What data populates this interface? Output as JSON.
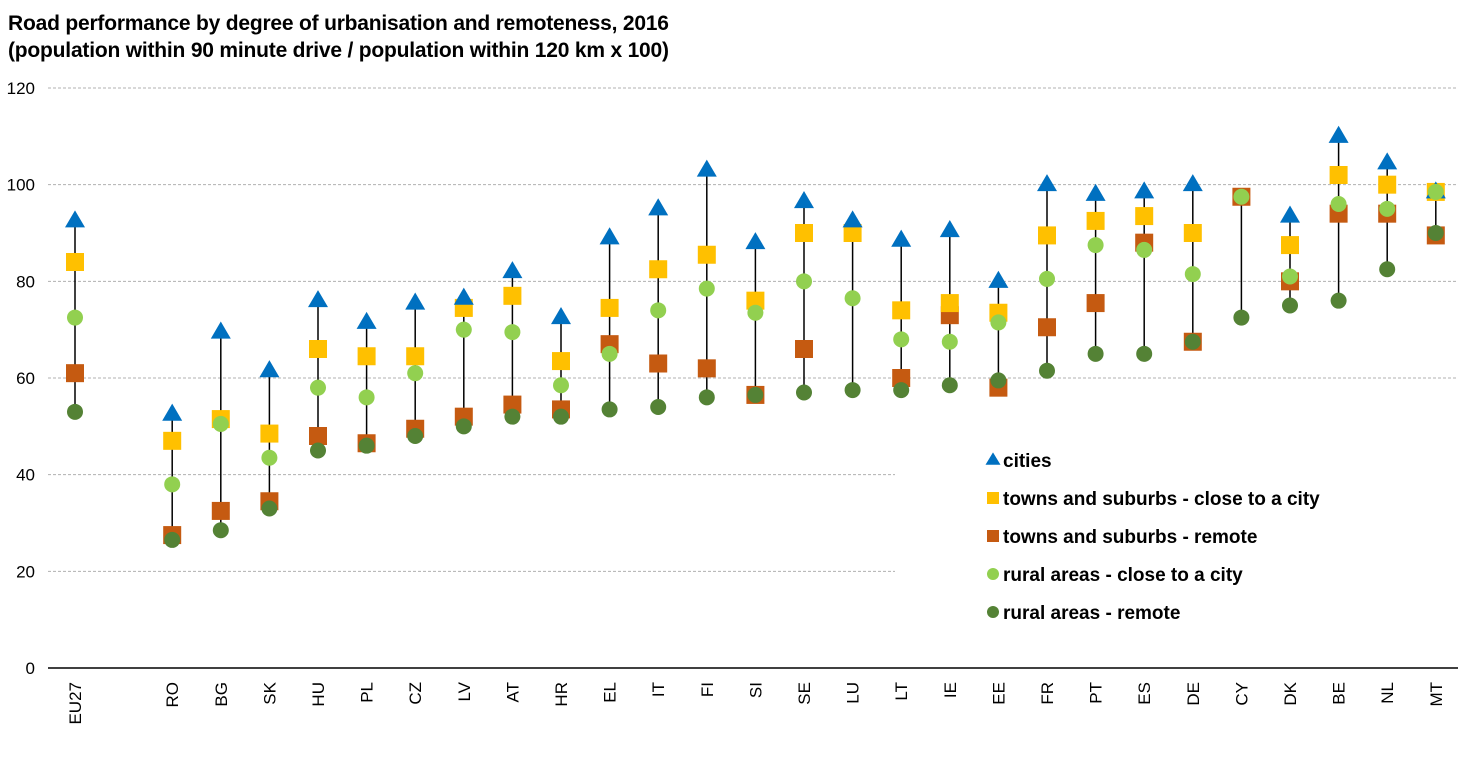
{
  "chart_data": {
    "type": "scatter",
    "subtype": "dot-range",
    "title": "Road performance by degree of urbanisation and remoteness, 2016",
    "subtitle": "(population within 90 minute drive / population within 120 km x 100)",
    "xlabel": "",
    "ylabel": "",
    "ylim": [
      0,
      120
    ],
    "yticks": [
      0,
      20,
      40,
      60,
      80,
      100,
      120
    ],
    "grid": true,
    "legend_position": "lower-right",
    "categories": [
      "EU27",
      "",
      "RO",
      "BG",
      "SK",
      "HU",
      "PL",
      "CZ",
      "LV",
      "AT",
      "HR",
      "EL",
      "IT",
      "FI",
      "SI",
      "SE",
      "LU",
      "LT",
      "IE",
      "EE",
      "FR",
      "PT",
      "ES",
      "DE",
      "CY",
      "DK",
      "BE",
      "NL",
      "MT"
    ],
    "series": [
      {
        "name": "cities",
        "marker": "triangle",
        "color": "#0070C0",
        "values": [
          92.5,
          null,
          52.5,
          69.5,
          61.5,
          76,
          71.5,
          75.5,
          76.5,
          82,
          72.5,
          89,
          95,
          103,
          88,
          96.5,
          92.5,
          88.5,
          90.5,
          80,
          100,
          98,
          98.5,
          100,
          null,
          93.5,
          110,
          104.5,
          98.5
        ]
      },
      {
        "name": "towns and suburbs - close to a city",
        "marker": "square",
        "color": "#FFC000",
        "values": [
          84,
          null,
          47,
          51.5,
          48.5,
          66,
          64.5,
          64.5,
          74.5,
          77,
          63.5,
          74.5,
          82.5,
          85.5,
          76,
          90,
          90,
          74,
          75.5,
          73.5,
          89.5,
          92.5,
          93.5,
          90,
          null,
          87.5,
          102,
          100,
          98.5
        ]
      },
      {
        "name": "towns and suburbs - remote",
        "marker": "square",
        "color": "#C55A11",
        "values": [
          61,
          null,
          27.5,
          32.5,
          34.5,
          48,
          46.5,
          49.5,
          52,
          54.5,
          53.5,
          67,
          63,
          62,
          56.5,
          66,
          null,
          60,
          73,
          58,
          70.5,
          75.5,
          88,
          67.5,
          97.5,
          80,
          94,
          94,
          89.5
        ]
      },
      {
        "name": "rural areas - close to a city",
        "marker": "circle",
        "color": "#92D050",
        "values": [
          72.5,
          null,
          38,
          50.5,
          43.5,
          58,
          56,
          61,
          70,
          69.5,
          58.5,
          65,
          74,
          78.5,
          73.5,
          80,
          76.5,
          68,
          67.5,
          71.5,
          80.5,
          87.5,
          86.5,
          81.5,
          97.5,
          81,
          96,
          95,
          98.5
        ]
      },
      {
        "name": "rural areas - remote",
        "marker": "circle",
        "color": "#548235",
        "values": [
          53,
          null,
          26.5,
          28.5,
          33,
          45,
          46,
          48,
          50,
          52,
          52,
          53.5,
          54,
          56,
          56.5,
          57,
          57.5,
          57.5,
          58.5,
          59.5,
          61.5,
          65,
          65,
          67.5,
          72.5,
          75,
          76,
          82.5,
          90
        ]
      }
    ]
  }
}
